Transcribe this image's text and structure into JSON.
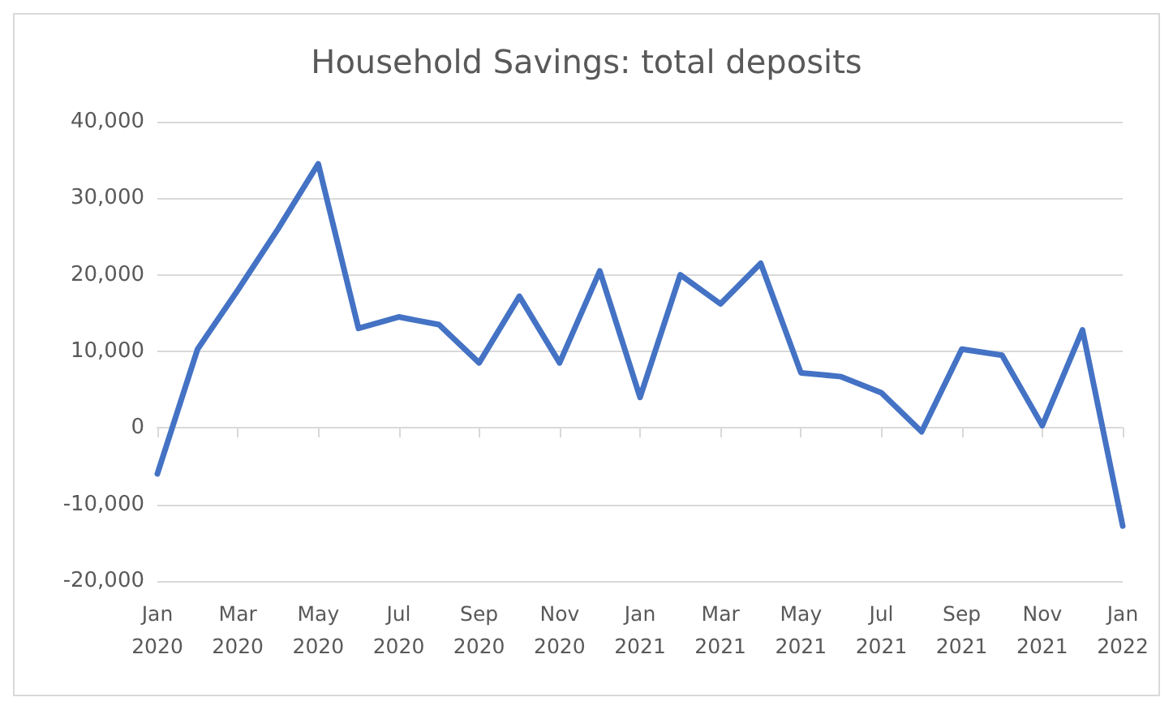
{
  "chart_data": {
    "type": "line",
    "title": "Household Savings: total deposits",
    "categories": [
      "Jan 2020",
      null,
      "Mar 2020",
      null,
      "May 2020",
      null,
      "Jul 2020",
      null,
      "Sep 2020",
      null,
      "Nov 2020",
      null,
      "Jan 2021",
      null,
      "Mar 2021",
      null,
      "May 2021",
      null,
      "Jul 2021",
      null,
      "Sep 2021",
      null,
      "Nov 2021",
      null,
      "Jan 2022"
    ],
    "series": [
      {
        "color": "#4472c4",
        "values": [
          -6000,
          10300,
          18000,
          26000,
          34500,
          13000,
          14500,
          13500,
          8500,
          17200,
          8500,
          20500,
          4000,
          20000,
          16200,
          21500,
          7200,
          6700,
          4600,
          -500,
          10300,
          9500,
          300,
          12800,
          -12800
        ]
      }
    ],
    "ylim": [
      -20000,
      40000
    ],
    "yticks": [
      {
        "value": -20000,
        "label": "-20,000"
      },
      {
        "value": -10000,
        "label": "-10,000"
      },
      0,
      {
        "value": 10000,
        "label": "10,000"
      },
      {
        "value": 20000,
        "label": "20,000"
      },
      {
        "value": 30000,
        "label": "30,000"
      },
      {
        "value": 40000,
        "label": "40,000"
      }
    ],
    "grid": "y",
    "marker": "none",
    "line_style": "solid"
  }
}
